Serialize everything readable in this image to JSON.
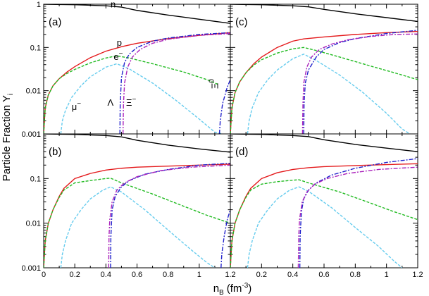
{
  "chart_data": {
    "type": "line",
    "xlabel": "n",
    "xlabel_sub": "B",
    "xlabel_unit": "(fm",
    "xlabel_unit_sup": "-3",
    "xlabel_unit_end": ")",
    "ylabel": "Particle Fraction Y",
    "ylabel_sub": "i",
    "xlim": [
      0,
      1.2
    ],
    "ylim": [
      0.001,
      1
    ],
    "yscale": "log",
    "x_ticks": [
      0,
      0.2,
      0.4,
      0.6,
      0.8,
      1,
      1.2
    ],
    "x_tick_labels_left": [
      "0",
      "0.2",
      "0.4",
      "0.6",
      "0.8",
      "1",
      "1.2"
    ],
    "x_tick_labels_right": [
      "0.2",
      "0.4",
      "0.6",
      "0.8",
      "1",
      "1.2"
    ],
    "y_ticks": [
      0.001,
      0.01,
      0.1,
      1
    ],
    "y_tick_labels": [
      "0.001",
      "0.01",
      "0.1",
      "1"
    ],
    "annotations": [
      {
        "text": "n",
        "panel": "a",
        "x": 0.43,
        "y": 0.85
      },
      {
        "text": "p",
        "panel": "a",
        "x": 0.47,
        "y": 0.11
      },
      {
        "text": "e",
        "sup": "−",
        "panel": "a",
        "x": 0.45,
        "y": 0.052
      },
      {
        "text": "μ",
        "sup": "−",
        "panel": "a",
        "x": 0.18,
        "y": 0.0036
      },
      {
        "text": "Λ",
        "panel": "a",
        "x": 0.41,
        "y": 0.0045
      },
      {
        "text": "Ξ",
        "sup": "−",
        "panel": "a",
        "x": 0.53,
        "y": 0.0045
      },
      {
        "text": "Ξ",
        "sup": "0",
        "panel": "a",
        "x": 1.12,
        "y": 0.011
      }
    ],
    "panels": [
      {
        "label": "(a)",
        "series": [
          {
            "name": "n",
            "color": "#000000",
            "dash": "",
            "x": [
              0,
              0.2,
              0.4,
              0.5,
              0.6,
              0.8,
              1.0,
              1.2
            ],
            "y": [
              0.999,
              0.975,
              0.92,
              0.86,
              0.72,
              0.56,
              0.45,
              0.36
            ]
          },
          {
            "name": "p",
            "color": "#e41a1c",
            "dash": "",
            "x": [
              0,
              0.01,
              0.03,
              0.06,
              0.1,
              0.15,
              0.2,
              0.3,
              0.4,
              0.5,
              0.52,
              0.6,
              0.8,
              1.0,
              1.2
            ],
            "y": [
              0.001,
              0.004,
              0.008,
              0.013,
              0.019,
              0.027,
              0.036,
              0.058,
              0.082,
              0.104,
              0.108,
              0.125,
              0.16,
              0.19,
              0.22
            ]
          },
          {
            "name": "e",
            "color": "#22bb22",
            "dash": "4,2",
            "x": [
              0,
              0.01,
              0.03,
              0.06,
              0.1,
              0.15,
              0.2,
              0.3,
              0.4,
              0.47,
              0.55,
              0.7,
              0.9,
              1.05,
              1.12
            ],
            "y": [
              0.001,
              0.004,
              0.008,
              0.013,
              0.019,
              0.025,
              0.031,
              0.044,
              0.057,
              0.064,
              0.057,
              0.042,
              0.027,
              0.018,
              0.014
            ]
          },
          {
            "name": "μ",
            "color": "#66ccee",
            "dash": "4,2",
            "x": [
              0.11,
              0.12,
              0.14,
              0.18,
              0.24,
              0.3,
              0.4,
              0.47,
              0.55,
              0.7,
              0.85,
              1.0,
              1.1,
              1.15
            ],
            "y": [
              0.001,
              0.002,
              0.0035,
              0.007,
              0.013,
              0.021,
              0.035,
              0.042,
              0.032,
              0.015,
              0.006,
              0.0022,
              0.0011,
              0.001
            ]
          },
          {
            "name": "Λ",
            "color": "#2222cc",
            "dash": "6,2,2,2",
            "x": [
              0.49,
              0.492,
              0.5,
              0.52,
              0.55,
              0.6,
              0.7,
              0.8,
              1.0,
              1.2
            ],
            "y": [
              0.001,
              0.005,
              0.02,
              0.045,
              0.07,
              0.1,
              0.14,
              0.165,
              0.2,
              0.22
            ]
          },
          {
            "name": "Ξ",
            "color": "#aa22bb",
            "dash": "6,2,2,2",
            "x": [
              0.51,
              0.513,
              0.52,
              0.54,
              0.57,
              0.62,
              0.7,
              0.8,
              1.0,
              1.2
            ],
            "y": [
              0.001,
              0.005,
              0.015,
              0.035,
              0.06,
              0.09,
              0.125,
              0.155,
              0.19,
              0.21
            ]
          },
          {
            "name": "Ξ0",
            "color": "#2222cc",
            "dash": "6,2,2,2",
            "x": [
              1.13,
              1.135,
              1.15,
              1.18,
              1.2
            ],
            "y": [
              0.001,
              0.002,
              0.005,
              0.012,
              0.018
            ]
          }
        ]
      },
      {
        "label": "(c)",
        "series": [
          {
            "name": "n",
            "color": "#000000",
            "dash": "",
            "x": [
              0,
              0.2,
              0.4,
              0.5,
              0.6,
              0.8,
              1.0,
              1.2
            ],
            "y": [
              0.999,
              0.975,
              0.92,
              0.87,
              0.76,
              0.6,
              0.49,
              0.4
            ]
          },
          {
            "name": "p",
            "color": "#e41a1c",
            "dash": "",
            "x": [
              0,
              0.01,
              0.03,
              0.06,
              0.1,
              0.15,
              0.2,
              0.3,
              0.4,
              0.47,
              0.6,
              0.8,
              1.0,
              1.2
            ],
            "y": [
              0.001,
              0.004,
              0.009,
              0.016,
              0.026,
              0.042,
              0.06,
              0.1,
              0.14,
              0.158,
              0.175,
              0.2,
              0.22,
              0.235
            ]
          },
          {
            "name": "e",
            "color": "#22bb22",
            "dash": "4,2",
            "x": [
              0,
              0.01,
              0.03,
              0.06,
              0.1,
              0.15,
              0.2,
              0.3,
              0.4,
              0.47,
              0.55,
              0.7,
              0.9,
              1.05,
              1.2
            ],
            "y": [
              0.001,
              0.004,
              0.009,
              0.016,
              0.026,
              0.039,
              0.052,
              0.074,
              0.093,
              0.1,
              0.085,
              0.06,
              0.037,
              0.026,
              0.018
            ]
          },
          {
            "name": "μ",
            "color": "#66ccee",
            "dash": "4,2",
            "x": [
              0.11,
              0.12,
              0.14,
              0.18,
              0.24,
              0.3,
              0.4,
              0.47,
              0.55,
              0.7,
              0.85,
              1.0,
              1.1,
              1.15
            ],
            "y": [
              0.001,
              0.002,
              0.004,
              0.009,
              0.018,
              0.03,
              0.055,
              0.07,
              0.05,
              0.023,
              0.009,
              0.003,
              0.0013,
              0.001
            ]
          },
          {
            "name": "Λ",
            "color": "#2222cc",
            "dash": "6,2,2,2",
            "x": [
              0.47,
              0.472,
              0.48,
              0.5,
              0.55,
              0.6,
              0.7,
              0.8,
              1.0,
              1.2
            ],
            "y": [
              0.001,
              0.005,
              0.015,
              0.03,
              0.06,
              0.09,
              0.13,
              0.16,
              0.21,
              0.25
            ]
          },
          {
            "name": "Ξ",
            "color": "#aa22bb",
            "dash": "6,2,2,2",
            "x": [
              0.462,
              0.465,
              0.47,
              0.49,
              0.52,
              0.57,
              0.65,
              0.75,
              0.9,
              1.05,
              1.2
            ],
            "y": [
              0.001,
              0.005,
              0.015,
              0.035,
              0.06,
              0.09,
              0.12,
              0.15,
              0.18,
              0.2,
              0.205
            ]
          }
        ]
      },
      {
        "label": "(b)",
        "series": [
          {
            "name": "n",
            "color": "#000000",
            "dash": "",
            "x": [
              0,
              0.2,
              0.4,
              0.5,
              0.6,
              0.8,
              1.0,
              1.2
            ],
            "y": [
              0.999,
              0.975,
              0.92,
              0.86,
              0.72,
              0.56,
              0.46,
              0.39
            ]
          },
          {
            "name": "p",
            "color": "#e41a1c",
            "dash": "",
            "x": [
              0,
              0.01,
              0.03,
              0.06,
              0.1,
              0.13,
              0.2,
              0.3,
              0.4,
              0.5,
              0.6,
              0.8,
              1.0,
              1.2
            ],
            "y": [
              0.001,
              0.004,
              0.01,
              0.02,
              0.04,
              0.06,
              0.1,
              0.13,
              0.155,
              0.17,
              0.18,
              0.19,
              0.2,
              0.21
            ]
          },
          {
            "name": "e",
            "color": "#22bb22",
            "dash": "4,2",
            "x": [
              0,
              0.01,
              0.03,
              0.06,
              0.1,
              0.13,
              0.2,
              0.3,
              0.4,
              0.43,
              0.5,
              0.7,
              0.9,
              1.05,
              1.2
            ],
            "y": [
              0.001,
              0.004,
              0.01,
              0.02,
              0.038,
              0.055,
              0.08,
              0.09,
              0.1,
              0.102,
              0.08,
              0.045,
              0.024,
              0.015,
              0.01
            ]
          },
          {
            "name": "μ",
            "color": "#66ccee",
            "dash": "4,2",
            "x": [
              0.11,
              0.12,
              0.14,
              0.18,
              0.24,
              0.3,
              0.38,
              0.43,
              0.5,
              0.65,
              0.8,
              0.95,
              1.05,
              1.1
            ],
            "y": [
              0.001,
              0.002,
              0.004,
              0.01,
              0.02,
              0.035,
              0.055,
              0.065,
              0.05,
              0.02,
              0.007,
              0.0025,
              0.0013,
              0.001
            ]
          },
          {
            "name": "Λ",
            "color": "#2222cc",
            "dash": "6,2,2,2",
            "x": [
              0.43,
              0.432,
              0.44,
              0.46,
              0.5,
              0.55,
              0.65,
              0.8,
              1.0,
              1.2
            ],
            "y": [
              0.001,
              0.005,
              0.02,
              0.04,
              0.065,
              0.09,
              0.125,
              0.16,
              0.2,
              0.22
            ]
          },
          {
            "name": "Ξ",
            "color": "#aa22bb",
            "dash": "6,2,2,2",
            "x": [
              0.418,
              0.42,
              0.425,
              0.44,
              0.47,
              0.52,
              0.6,
              0.75,
              0.95,
              1.2
            ],
            "y": [
              0.001,
              0.005,
              0.012,
              0.03,
              0.055,
              0.08,
              0.11,
              0.15,
              0.18,
              0.2
            ]
          },
          {
            "name": "Ξ0",
            "color": "#2222cc",
            "dash": "6,2,2,2",
            "x": [
              1.14,
              1.145,
              1.16,
              1.18,
              1.2
            ],
            "y": [
              0.001,
              0.002,
              0.005,
              0.012,
              0.02
            ]
          }
        ]
      },
      {
        "label": "(d)",
        "series": [
          {
            "name": "n",
            "color": "#000000",
            "dash": "",
            "x": [
              0,
              0.2,
              0.4,
              0.5,
              0.6,
              0.8,
              1.0,
              1.2
            ],
            "y": [
              0.999,
              0.975,
              0.92,
              0.87,
              0.74,
              0.58,
              0.48,
              0.4
            ]
          },
          {
            "name": "p",
            "color": "#e41a1c",
            "dash": "",
            "x": [
              0,
              0.01,
              0.03,
              0.06,
              0.1,
              0.13,
              0.2,
              0.3,
              0.4,
              0.5,
              0.6,
              0.8,
              1.0,
              1.2
            ],
            "y": [
              0.001,
              0.004,
              0.01,
              0.02,
              0.04,
              0.06,
              0.1,
              0.135,
              0.16,
              0.175,
              0.185,
              0.195,
              0.205,
              0.215
            ]
          },
          {
            "name": "e",
            "color": "#22bb22",
            "dash": "4,2",
            "x": [
              0,
              0.01,
              0.03,
              0.06,
              0.1,
              0.13,
              0.2,
              0.3,
              0.4,
              0.44,
              0.5,
              0.7,
              0.9,
              1.05,
              1.2
            ],
            "y": [
              0.001,
              0.004,
              0.01,
              0.02,
              0.038,
              0.055,
              0.075,
              0.085,
              0.092,
              0.094,
              0.08,
              0.05,
              0.028,
              0.018,
              0.012
            ]
          },
          {
            "name": "μ",
            "color": "#66ccee",
            "dash": "4,2",
            "x": [
              0.11,
              0.12,
              0.14,
              0.18,
              0.24,
              0.3,
              0.38,
              0.44,
              0.5,
              0.65,
              0.8,
              0.95,
              1.05,
              1.1
            ],
            "y": [
              0.001,
              0.002,
              0.004,
              0.01,
              0.02,
              0.035,
              0.055,
              0.065,
              0.052,
              0.022,
              0.008,
              0.003,
              0.0014,
              0.001
            ]
          },
          {
            "name": "Λ",
            "color": "#2222cc",
            "dash": "6,2,2,2",
            "x": [
              0.445,
              0.447,
              0.455,
              0.47,
              0.5,
              0.55,
              0.65,
              0.8,
              1.0,
              1.2
            ],
            "y": [
              0.001,
              0.005,
              0.018,
              0.035,
              0.055,
              0.08,
              0.12,
              0.17,
              0.23,
              0.28
            ]
          },
          {
            "name": "Ξ",
            "color": "#aa22bb",
            "dash": "6,2,2,2",
            "x": [
              0.435,
              0.438,
              0.443,
              0.46,
              0.49,
              0.54,
              0.62,
              0.75,
              0.95,
              1.2
            ],
            "y": [
              0.001,
              0.005,
              0.012,
              0.03,
              0.05,
              0.075,
              0.1,
              0.13,
              0.16,
              0.18
            ]
          }
        ]
      }
    ]
  }
}
